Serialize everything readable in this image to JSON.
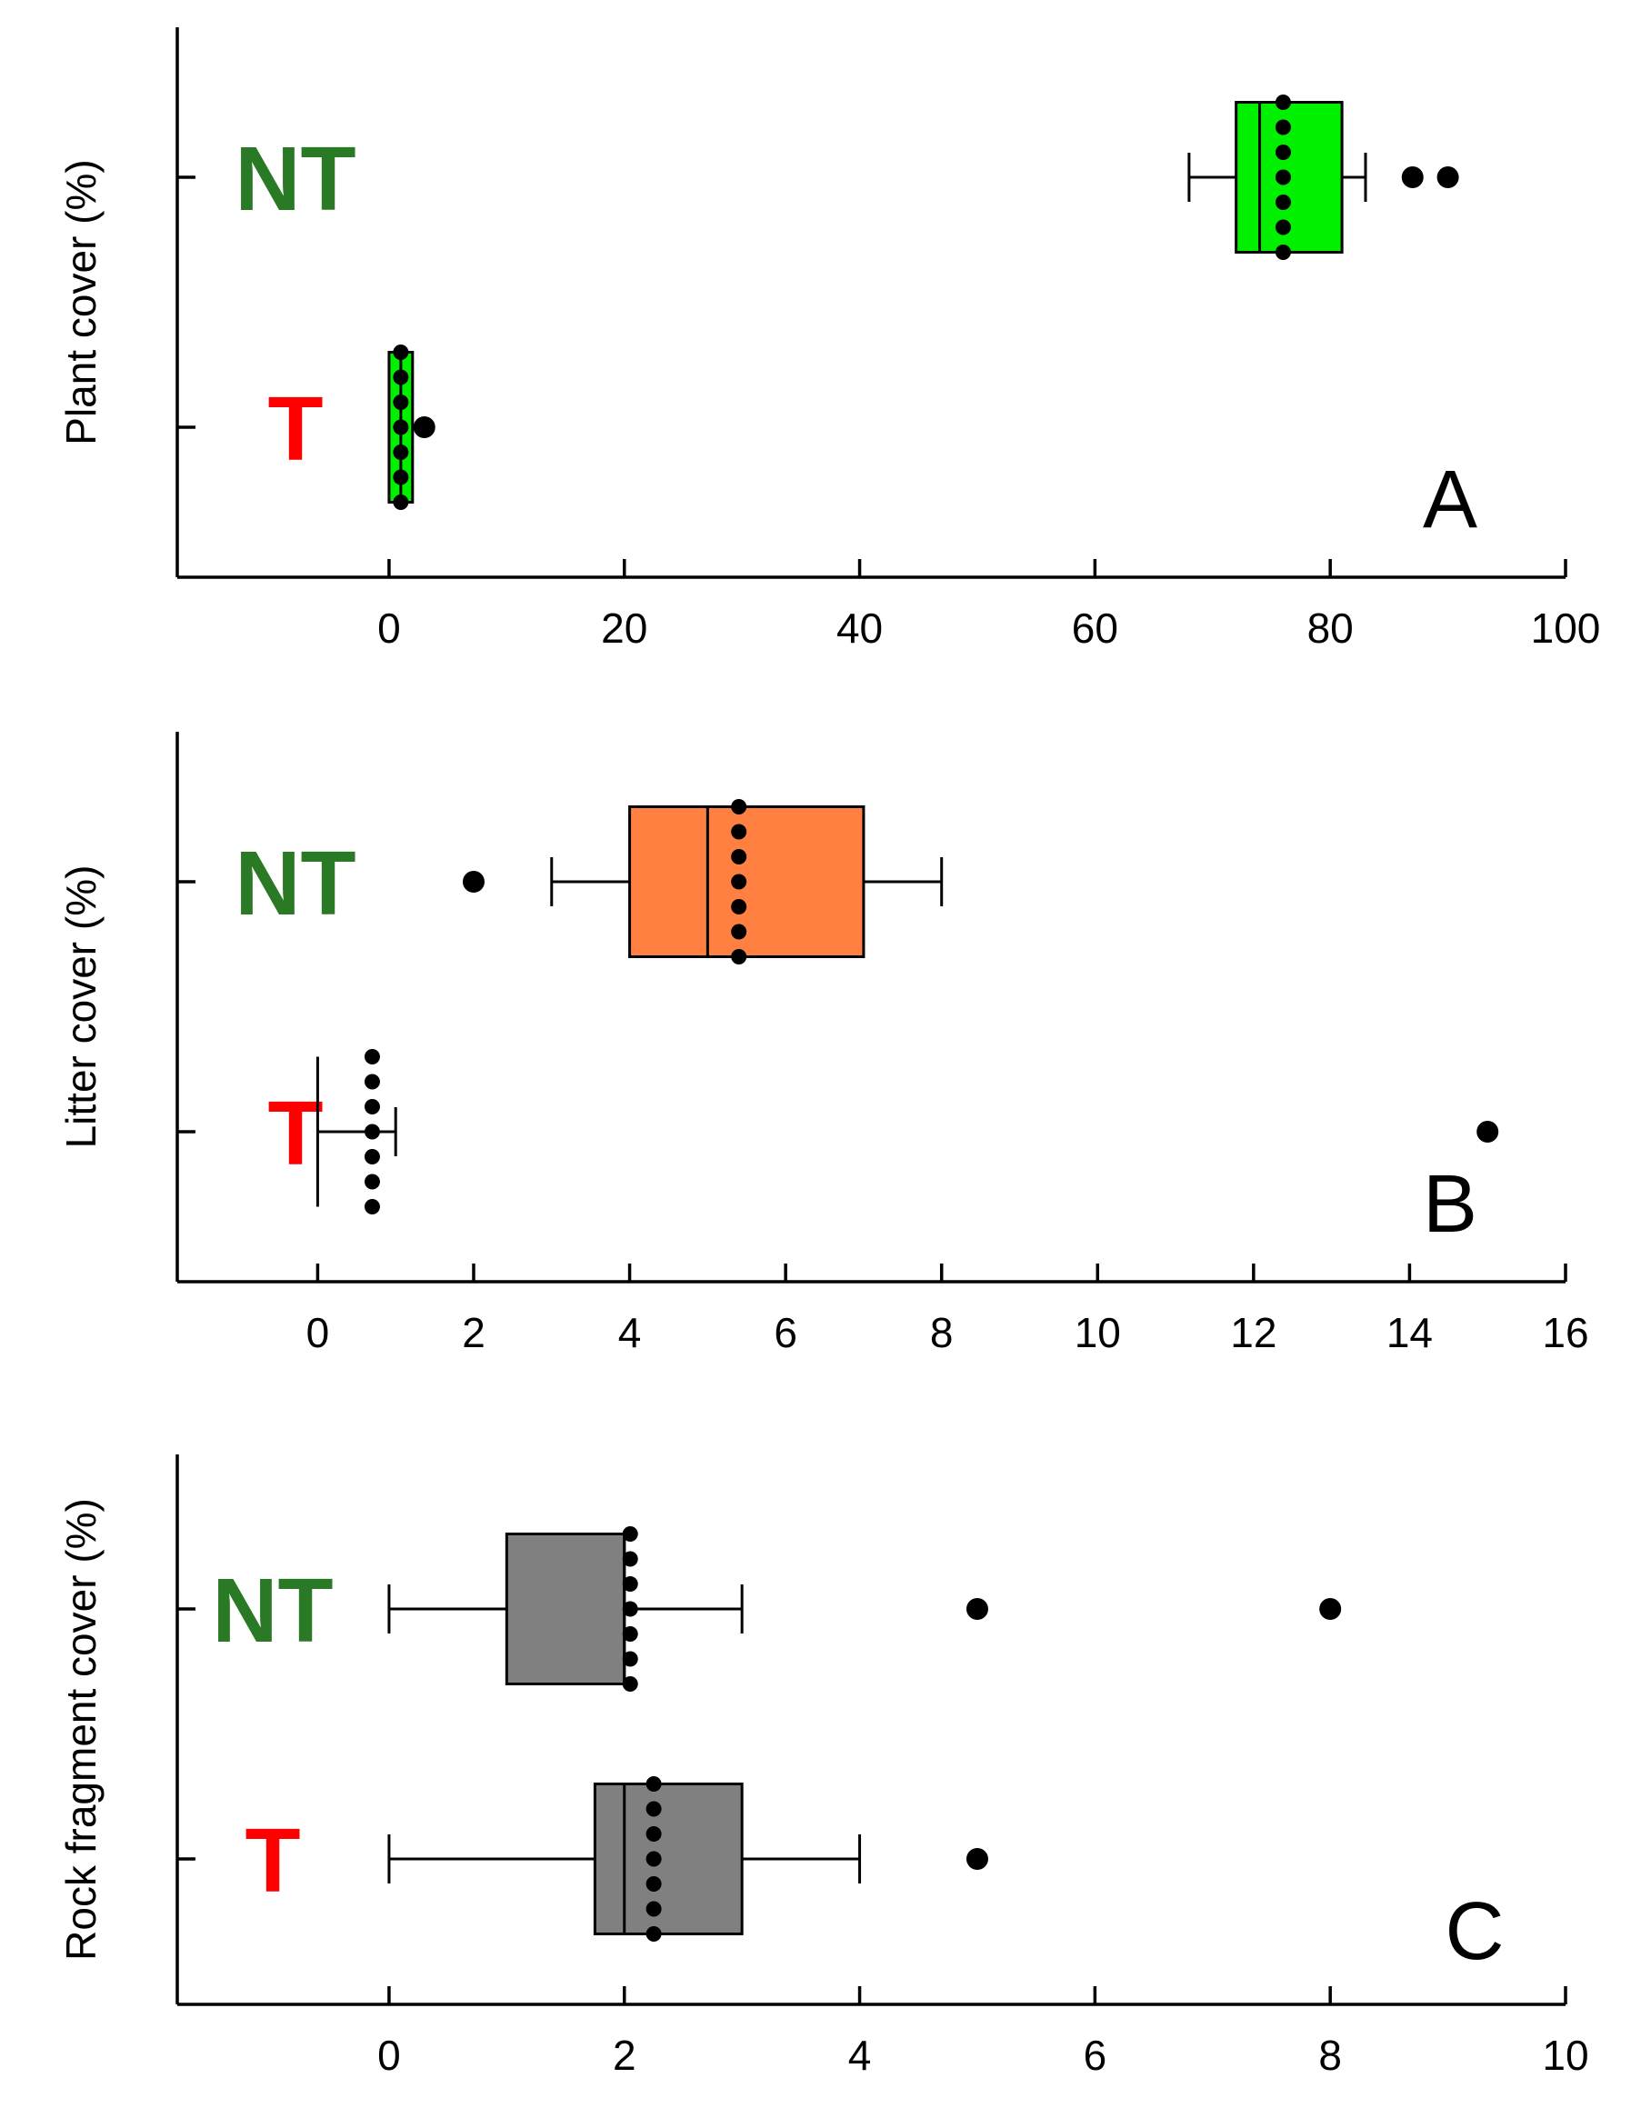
{
  "colors": {
    "nt_label": "#2a7a25",
    "t_label": "#ff0000"
  },
  "chart_data": [
    {
      "type": "boxplot",
      "panel": "A",
      "ylabel": "Plant cover (%)",
      "xlim": [
        -18,
        100
      ],
      "xticks": [
        0,
        20,
        40,
        60,
        80,
        100
      ],
      "tick_labels": [
        "0",
        "20",
        "40",
        "60",
        "80",
        "100"
      ],
      "fill": "#00f000",
      "groups": [
        {
          "name": "NT",
          "whisker_low": 68,
          "q1": 72,
          "median": 74,
          "q3": 81,
          "whisker_high": 83,
          "mean": 76,
          "outliers": [
            87,
            90
          ]
        },
        {
          "name": "T",
          "whisker_low": 0,
          "q1": 0,
          "median": 1,
          "q3": 2,
          "whisker_high": 2,
          "mean": 1,
          "outliers": [
            3
          ]
        }
      ]
    },
    {
      "type": "boxplot",
      "panel": "B",
      "ylabel": "Litter cover (%)",
      "xlim": [
        -1.8,
        16
      ],
      "xticks": [
        0,
        2,
        4,
        6,
        8,
        10,
        12,
        14,
        16
      ],
      "tick_labels": [
        "0",
        "2",
        "4",
        "6",
        "8",
        "10",
        "12",
        "14",
        "16"
      ],
      "fill": "#ff8040",
      "groups": [
        {
          "name": "NT",
          "whisker_low": 3,
          "q1": 4,
          "median": 5,
          "q3": 7,
          "whisker_high": 8,
          "mean": 5.4,
          "outliers": [
            2
          ]
        },
        {
          "name": "T",
          "whisker_low": 0,
          "q1": 0,
          "median": 0,
          "q3": 0,
          "whisker_high": 1,
          "mean": 0.7,
          "outliers": [
            15
          ]
        }
      ]
    },
    {
      "type": "boxplot",
      "panel": "C",
      "ylabel": "Rock fragment cover (%)",
      "xlim": [
        -1.8,
        10
      ],
      "xticks": [
        0,
        2,
        4,
        6,
        8,
        10
      ],
      "tick_labels": [
        "0",
        "2",
        "4",
        "6",
        "8",
        "10"
      ],
      "fill": "#808080",
      "groups": [
        {
          "name": "NT",
          "whisker_low": 0,
          "q1": 1,
          "median": 2,
          "q3": 2,
          "whisker_high": 3,
          "mean": 2.05,
          "outliers": [
            5,
            8
          ]
        },
        {
          "name": "T",
          "whisker_low": 0,
          "q1": 1.75,
          "median": 2,
          "q3": 3,
          "whisker_high": 4,
          "mean": 2.25,
          "outliers": [
            5
          ]
        }
      ]
    }
  ]
}
